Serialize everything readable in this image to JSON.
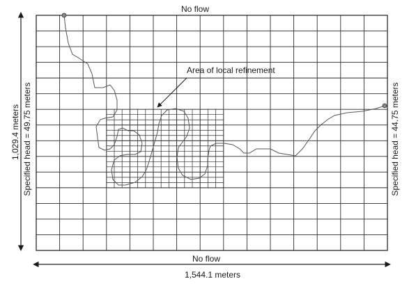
{
  "labels": {
    "top_boundary": "No flow",
    "bottom_boundary": "No flow",
    "left_boundary": "Specified head = 49.75 meters",
    "right_boundary": "Specified head = 44.75 meters",
    "refinement_callout": "Area of local refinement",
    "width_dimension": "1,544.1 meters",
    "height_dimension": "1,029.4 meters"
  },
  "grid": {
    "coarse_columns": 15,
    "coarse_rows": 15,
    "refined_columns_of_coarse": [
      3,
      8
    ],
    "refined_rows_of_coarse": [
      6,
      11
    ],
    "refinement_factor": 3
  },
  "colors": {
    "grid_line": "#2a2a2a",
    "river_line": "#555555",
    "text": "#1a1a1a"
  }
}
